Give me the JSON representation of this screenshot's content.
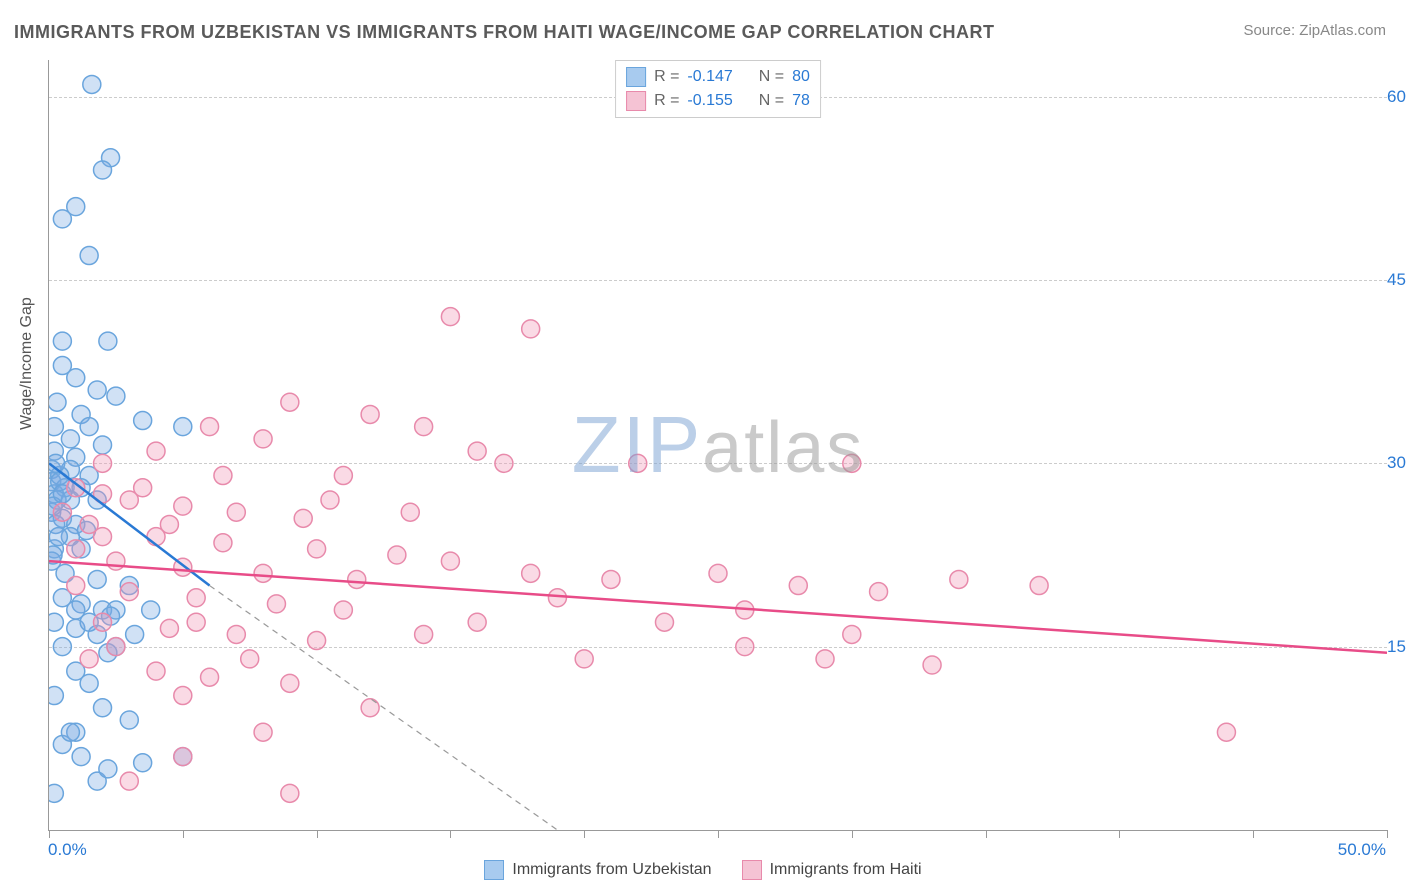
{
  "title": "IMMIGRANTS FROM UZBEKISTAN VS IMMIGRANTS FROM HAITI WAGE/INCOME GAP CORRELATION CHART",
  "source": "Source: ZipAtlas.com",
  "ylabel": "Wage/Income Gap",
  "watermark_zip": "ZIP",
  "watermark_atlas": "atlas",
  "chart": {
    "type": "scatter",
    "xlim": [
      0,
      50
    ],
    "ylim": [
      0,
      63
    ],
    "y_gridlines": [
      15,
      30,
      45,
      60
    ],
    "y_tick_labels": [
      "15.0%",
      "30.0%",
      "45.0%",
      "60.0%"
    ],
    "x_ticks": [
      0,
      5,
      10,
      15,
      20,
      25,
      30,
      35,
      40,
      45,
      50
    ],
    "x_min_label": "0.0%",
    "x_max_label": "50.0%",
    "grid_color": "#cccccc",
    "axis_color": "#999999",
    "background_color": "#ffffff",
    "marker_radius": 9,
    "marker_stroke_width": 1.5,
    "series": [
      {
        "name": "Immigrants from Uzbekistan",
        "fill": "rgba(120,170,225,0.35)",
        "stroke": "#6aa5dd",
        "swatch_fill": "#a8cbef",
        "swatch_border": "#6aa5dd",
        "R": "-0.147",
        "N": "80",
        "trend": {
          "x1": 0,
          "y1": 30,
          "x2": 6,
          "y2": 20,
          "dash_ext_x2": 19,
          "dash_ext_y2": 0,
          "color": "#2979d4",
          "dash_color": "#999"
        },
        "points": [
          [
            1.6,
            61
          ],
          [
            2.3,
            55
          ],
          [
            2,
            54
          ],
          [
            1,
            51
          ],
          [
            0.5,
            50
          ],
          [
            1.5,
            47
          ],
          [
            0.5,
            40
          ],
          [
            2.2,
            40
          ],
          [
            0.5,
            38
          ],
          [
            1,
            37
          ],
          [
            1.8,
            36
          ],
          [
            2.5,
            35.5
          ],
          [
            0.3,
            35
          ],
          [
            1.2,
            34
          ],
          [
            3.5,
            33.5
          ],
          [
            0.2,
            33
          ],
          [
            1.5,
            33
          ],
          [
            0.8,
            32
          ],
          [
            2,
            31.5
          ],
          [
            0.2,
            31
          ],
          [
            1,
            30.5
          ],
          [
            5,
            33
          ],
          [
            0.1,
            29.5
          ],
          [
            0.8,
            29.5
          ],
          [
            1.5,
            29
          ],
          [
            0.1,
            28.5
          ],
          [
            0.6,
            28
          ],
          [
            1.2,
            28
          ],
          [
            0.2,
            27.5
          ],
          [
            0.8,
            27
          ],
          [
            1.8,
            27
          ],
          [
            0.1,
            26
          ],
          [
            0.5,
            25.5
          ],
          [
            1,
            25
          ],
          [
            1.4,
            24.5
          ],
          [
            0.8,
            24
          ],
          [
            0.2,
            23
          ],
          [
            1.2,
            23
          ],
          [
            0.1,
            22
          ],
          [
            0.6,
            21
          ],
          [
            1.8,
            20.5
          ],
          [
            3,
            20
          ],
          [
            0.5,
            19
          ],
          [
            1.2,
            18.5
          ],
          [
            2,
            18
          ],
          [
            2.5,
            18
          ],
          [
            0.2,
            17
          ],
          [
            1,
            16.5
          ],
          [
            1.8,
            16
          ],
          [
            0.5,
            15
          ],
          [
            2.2,
            14.5
          ],
          [
            1,
            13
          ],
          [
            1.5,
            12
          ],
          [
            0.2,
            11
          ],
          [
            2,
            10
          ],
          [
            3,
            9
          ],
          [
            1,
            8
          ],
          [
            0.5,
            7
          ],
          [
            3.5,
            5.5
          ],
          [
            1.8,
            4
          ],
          [
            5,
            6
          ],
          [
            0.2,
            3
          ],
          [
            0.4,
            29
          ],
          [
            0.3,
            27
          ],
          [
            0.15,
            26.5
          ],
          [
            0.25,
            25
          ],
          [
            0.35,
            24
          ],
          [
            0.15,
            22.5
          ],
          [
            0.4,
            28.5
          ],
          [
            0.25,
            30
          ],
          [
            0.5,
            27.5
          ],
          [
            1,
            18
          ],
          [
            1.5,
            17
          ],
          [
            2.3,
            17.5
          ],
          [
            2.5,
            15
          ],
          [
            3.2,
            16
          ],
          [
            0.8,
            8
          ],
          [
            1.2,
            6
          ],
          [
            2.2,
            5
          ],
          [
            3.8,
            18
          ]
        ]
      },
      {
        "name": "Immigrants from Haiti",
        "fill": "rgba(240,150,180,0.35)",
        "stroke": "#e88aab",
        "swatch_fill": "#f5c3d4",
        "swatch_border": "#e88aab",
        "R": "-0.155",
        "N": "78",
        "trend": {
          "x1": 0,
          "y1": 22,
          "x2": 50,
          "y2": 14.5,
          "color": "#e84c88"
        },
        "points": [
          [
            15,
            42
          ],
          [
            18,
            41
          ],
          [
            9,
            35
          ],
          [
            12,
            34
          ],
          [
            14,
            33
          ],
          [
            16,
            31
          ],
          [
            6,
            33
          ],
          [
            8,
            32
          ],
          [
            4,
            31
          ],
          [
            11,
            29
          ],
          [
            17,
            30
          ],
          [
            22,
            30
          ],
          [
            1,
            28
          ],
          [
            2,
            27.5
          ],
          [
            3,
            27
          ],
          [
            5,
            26.5
          ],
          [
            7,
            26
          ],
          [
            9.5,
            25.5
          ],
          [
            30,
            30
          ],
          [
            1.5,
            25
          ],
          [
            4,
            24
          ],
          [
            6.5,
            23.5
          ],
          [
            10,
            23
          ],
          [
            13,
            22.5
          ],
          [
            1,
            23
          ],
          [
            2.5,
            22
          ],
          [
            5,
            21.5
          ],
          [
            8,
            21
          ],
          [
            11.5,
            20.5
          ],
          [
            15,
            22
          ],
          [
            18,
            21
          ],
          [
            21,
            20.5
          ],
          [
            25,
            21
          ],
          [
            28,
            20
          ],
          [
            31,
            19.5
          ],
          [
            34,
            20.5
          ],
          [
            1,
            20
          ],
          [
            3,
            19.5
          ],
          [
            5.5,
            19
          ],
          [
            8.5,
            18.5
          ],
          [
            26,
            18
          ],
          [
            30,
            16
          ],
          [
            2,
            17
          ],
          [
            4.5,
            16.5
          ],
          [
            7,
            16
          ],
          [
            10,
            15.5
          ],
          [
            29,
            14
          ],
          [
            33,
            13.5
          ],
          [
            1.5,
            14
          ],
          [
            4,
            13
          ],
          [
            6,
            12.5
          ],
          [
            9,
            12
          ],
          [
            5,
            11
          ],
          [
            12,
            10
          ],
          [
            8,
            8
          ],
          [
            5,
            6
          ],
          [
            3,
            4
          ],
          [
            9,
            3
          ],
          [
            44,
            8
          ],
          [
            37,
            20
          ],
          [
            2,
            30
          ],
          [
            0.5,
            26
          ],
          [
            3.5,
            28
          ],
          [
            6.5,
            29
          ],
          [
            10.5,
            27
          ],
          [
            13.5,
            26
          ],
          [
            2,
            24
          ],
          [
            4.5,
            25
          ],
          [
            19,
            19
          ],
          [
            23,
            17
          ],
          [
            26,
            15
          ],
          [
            20,
            14
          ],
          [
            16,
            17
          ],
          [
            14,
            16
          ],
          [
            11,
            18
          ],
          [
            7.5,
            14
          ],
          [
            5.5,
            17
          ],
          [
            2.5,
            15
          ]
        ]
      }
    ]
  },
  "legend_top": {
    "R_label": "R =",
    "N_label": "N ="
  },
  "legend_bottom_items": [
    "Immigrants from Uzbekistan",
    "Immigrants from Haiti"
  ]
}
